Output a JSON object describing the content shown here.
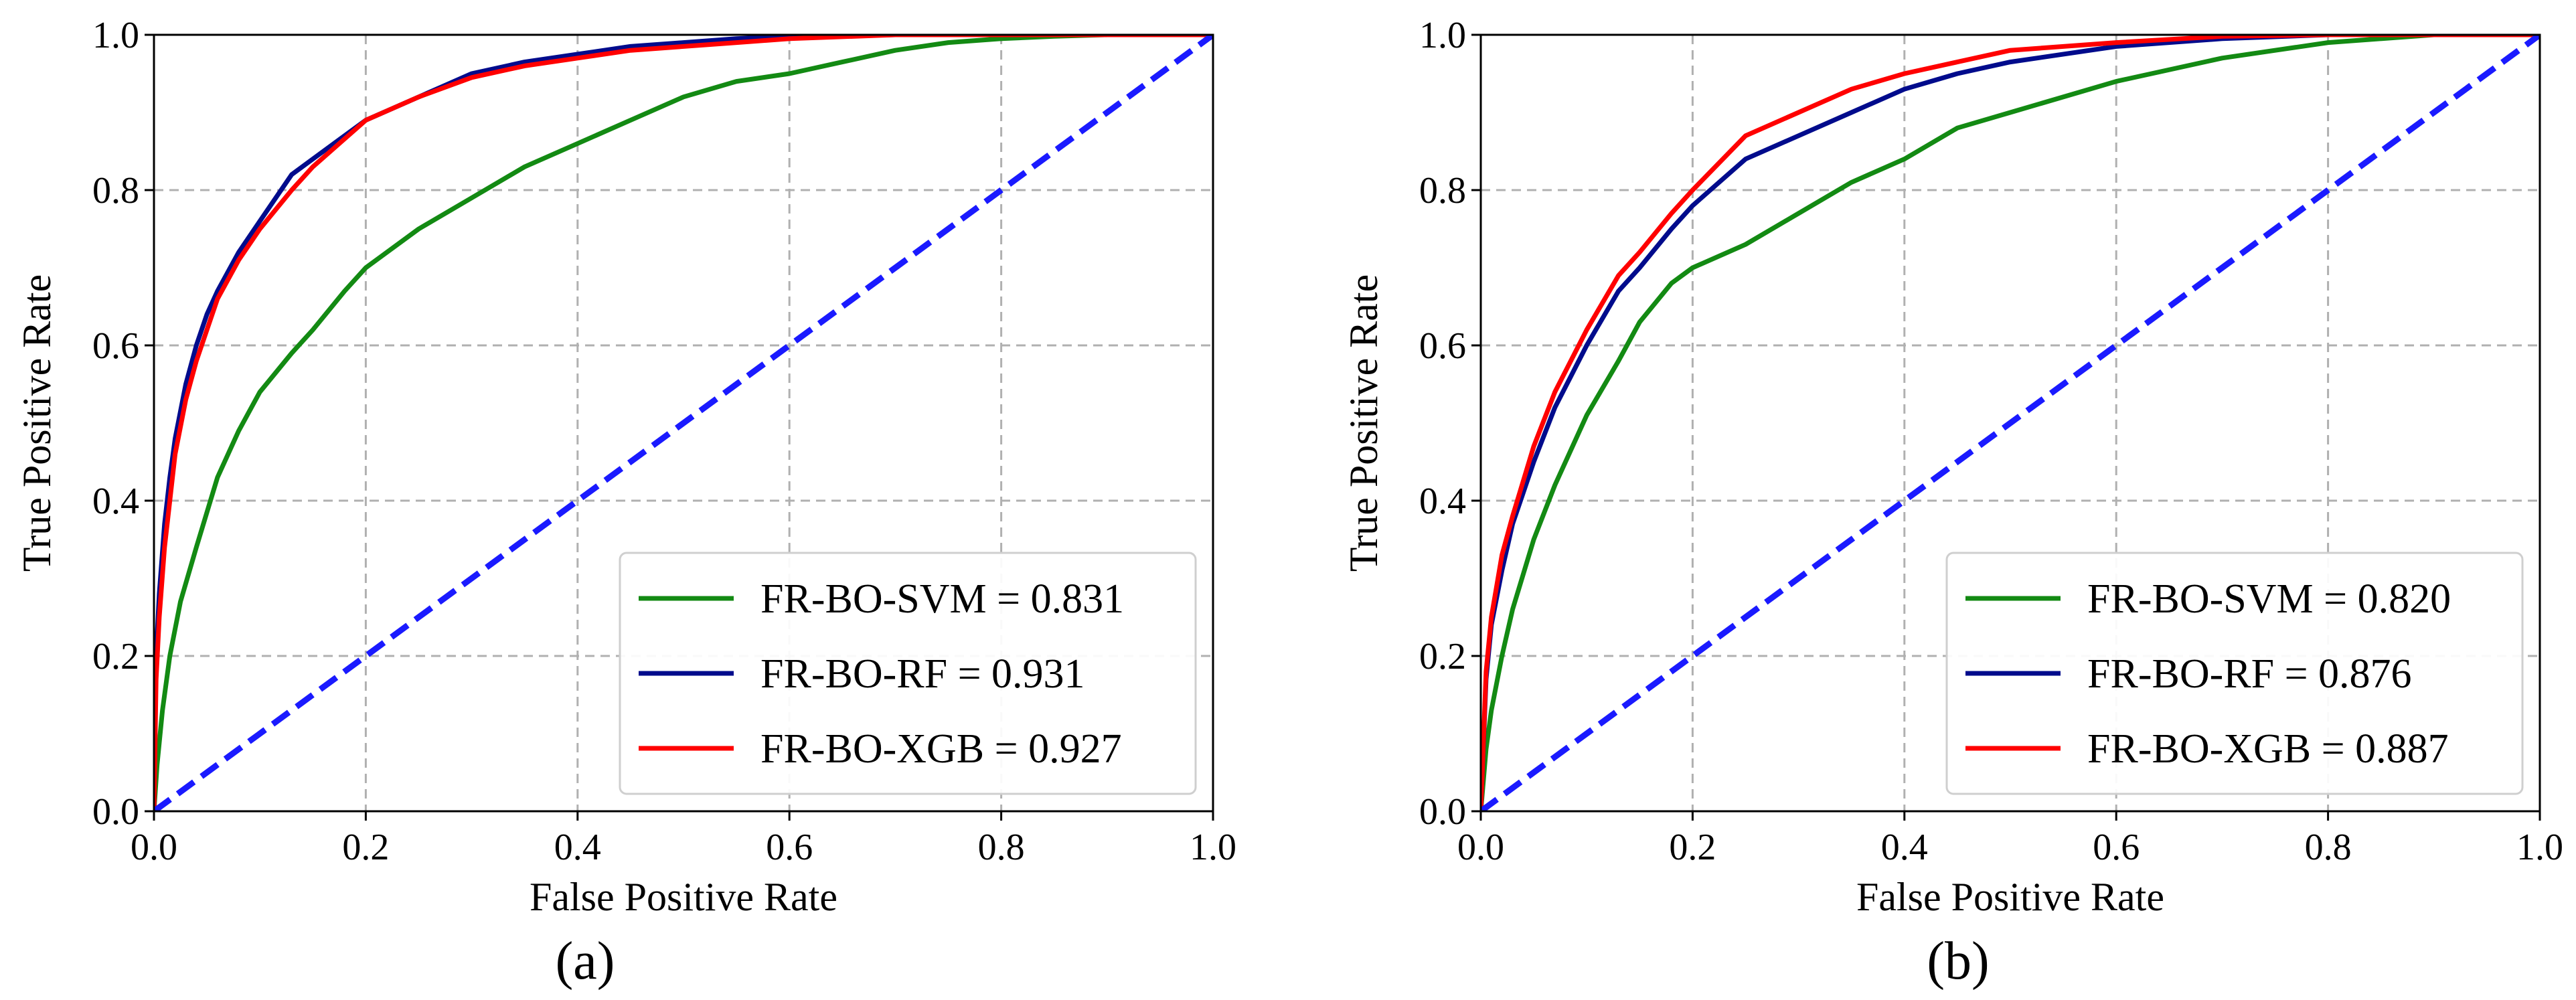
{
  "chart_data": [
    {
      "type": "line",
      "panel_label": "(a)",
      "xlabel": "False Positive Rate",
      "ylabel": "True Positive Rate",
      "xlim": [
        0.0,
        1.0
      ],
      "ylim": [
        0.0,
        1.0
      ],
      "xticks": [
        "0.0",
        "0.2",
        "0.4",
        "0.6",
        "0.8",
        "1.0"
      ],
      "yticks": [
        "0.0",
        "0.2",
        "0.4",
        "0.6",
        "0.8",
        "1.0"
      ],
      "grid": true,
      "legend_position": "lower-right",
      "series": [
        {
          "name": "FR-BO-SVM = 0.831",
          "color": "#138a13",
          "x": [
            0,
            0.003,
            0.008,
            0.015,
            0.025,
            0.04,
            0.06,
            0.08,
            0.1,
            0.13,
            0.15,
            0.18,
            0.2,
            0.25,
            0.3,
            0.35,
            0.4,
            0.45,
            0.5,
            0.55,
            0.6,
            0.65,
            0.7,
            0.75,
            0.8,
            0.85,
            0.9,
            1.0
          ],
          "y": [
            0,
            0.06,
            0.13,
            0.2,
            0.27,
            0.34,
            0.43,
            0.49,
            0.54,
            0.59,
            0.62,
            0.67,
            0.7,
            0.75,
            0.79,
            0.83,
            0.86,
            0.89,
            0.92,
            0.94,
            0.95,
            0.965,
            0.98,
            0.99,
            0.995,
            0.998,
            1.0,
            1.0
          ]
        },
        {
          "name": "FR-BO-RF = 0.931",
          "color": "#000b8c",
          "x": [
            0,
            0.002,
            0.005,
            0.01,
            0.015,
            0.02,
            0.03,
            0.04,
            0.05,
            0.06,
            0.08,
            0.1,
            0.13,
            0.15,
            0.2,
            0.25,
            0.3,
            0.35,
            0.4,
            0.45,
            0.5,
            0.55,
            0.6,
            0.7,
            0.8,
            1.0
          ],
          "y": [
            0,
            0.2,
            0.28,
            0.37,
            0.43,
            0.48,
            0.55,
            0.6,
            0.64,
            0.67,
            0.72,
            0.76,
            0.82,
            0.84,
            0.89,
            0.92,
            0.95,
            0.965,
            0.975,
            0.985,
            0.99,
            0.995,
            0.998,
            1.0,
            1.0,
            1.0
          ]
        },
        {
          "name": "FR-BO-XGB = 0.927",
          "color": "#ff0000",
          "x": [
            0,
            0.002,
            0.005,
            0.01,
            0.015,
            0.02,
            0.03,
            0.04,
            0.05,
            0.06,
            0.08,
            0.1,
            0.13,
            0.15,
            0.2,
            0.25,
            0.3,
            0.35,
            0.4,
            0.45,
            0.5,
            0.55,
            0.6,
            0.7,
            0.8,
            1.0
          ],
          "y": [
            0,
            0.17,
            0.25,
            0.34,
            0.4,
            0.46,
            0.53,
            0.58,
            0.62,
            0.66,
            0.71,
            0.75,
            0.8,
            0.83,
            0.89,
            0.92,
            0.945,
            0.96,
            0.97,
            0.98,
            0.985,
            0.99,
            0.995,
            1.0,
            1.0,
            1.0
          ]
        },
        {
          "name": "",
          "color": "#1a1aff",
          "dashed": true,
          "x": [
            0,
            1.0
          ],
          "y": [
            0,
            1.0
          ]
        }
      ]
    },
    {
      "type": "line",
      "panel_label": "(b)",
      "xlabel": "False Positive Rate",
      "ylabel": "True Positive Rate",
      "xlim": [
        0.0,
        1.0
      ],
      "ylim": [
        0.0,
        1.0
      ],
      "xticks": [
        "0.0",
        "0.2",
        "0.4",
        "0.6",
        "0.8",
        "1.0"
      ],
      "yticks": [
        "0.0",
        "0.2",
        "0.4",
        "0.6",
        "0.8",
        "1.0"
      ],
      "grid": true,
      "legend_position": "lower-right",
      "series": [
        {
          "name": "FR-BO-SVM = 0.820",
          "color": "#138a13",
          "x": [
            0,
            0.005,
            0.01,
            0.02,
            0.03,
            0.05,
            0.07,
            0.1,
            0.13,
            0.15,
            0.18,
            0.2,
            0.25,
            0.3,
            0.35,
            0.4,
            0.45,
            0.5,
            0.6,
            0.7,
            0.8,
            0.9,
            1.0
          ],
          "y": [
            0,
            0.08,
            0.13,
            0.2,
            0.26,
            0.35,
            0.42,
            0.51,
            0.58,
            0.63,
            0.68,
            0.7,
            0.73,
            0.77,
            0.81,
            0.84,
            0.88,
            0.9,
            0.94,
            0.97,
            0.99,
            1.0,
            1.0
          ]
        },
        {
          "name": "FR-BO-RF = 0.876",
          "color": "#000b8c",
          "x": [
            0,
            0.005,
            0.01,
            0.02,
            0.03,
            0.05,
            0.07,
            0.1,
            0.13,
            0.15,
            0.18,
            0.2,
            0.25,
            0.3,
            0.35,
            0.4,
            0.45,
            0.5,
            0.6,
            0.7,
            0.8,
            1.0
          ],
          "y": [
            0,
            0.17,
            0.24,
            0.31,
            0.37,
            0.45,
            0.52,
            0.6,
            0.67,
            0.7,
            0.75,
            0.78,
            0.84,
            0.87,
            0.9,
            0.93,
            0.95,
            0.965,
            0.985,
            0.995,
            1.0,
            1.0
          ]
        },
        {
          "name": "FR-BO-XGB = 0.887",
          "color": "#ff0000",
          "x": [
            0,
            0.005,
            0.01,
            0.02,
            0.03,
            0.05,
            0.07,
            0.1,
            0.13,
            0.15,
            0.18,
            0.2,
            0.25,
            0.3,
            0.35,
            0.4,
            0.45,
            0.5,
            0.6,
            0.7,
            0.8,
            1.0
          ],
          "y": [
            0,
            0.18,
            0.25,
            0.33,
            0.38,
            0.47,
            0.54,
            0.62,
            0.69,
            0.72,
            0.77,
            0.8,
            0.87,
            0.9,
            0.93,
            0.95,
            0.965,
            0.98,
            0.99,
            0.998,
            1.0,
            1.0
          ]
        },
        {
          "name": "",
          "color": "#1a1aff",
          "dashed": true,
          "x": [
            0,
            1.0
          ],
          "y": [
            0,
            1.0
          ]
        }
      ]
    }
  ]
}
